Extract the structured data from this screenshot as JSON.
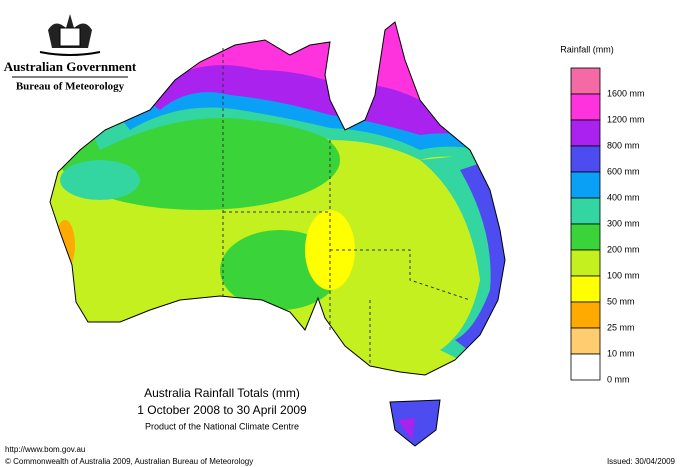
{
  "header": {
    "government": "Australian Government",
    "agency": "Bureau of Meteorology"
  },
  "legend": {
    "title": "Rainfall (mm)",
    "levels": [
      {
        "color": "#f46aa4",
        "label": "1600 mm"
      },
      {
        "color": "#ff33dd",
        "label": "1200 mm"
      },
      {
        "color": "#aa22ee",
        "label": "800 mm"
      },
      {
        "color": "#4c4cf0",
        "label": "600 mm"
      },
      {
        "color": "#0aa0f5",
        "label": "400 mm"
      },
      {
        "color": "#33d6a0",
        "label": "300 mm"
      },
      {
        "color": "#3ad43a",
        "label": "200 mm"
      },
      {
        "color": "#c4f020",
        "label": "100 mm"
      },
      {
        "color": "#ffff00",
        "label": "50 mm"
      },
      {
        "color": "#ffaa00",
        "label": "25 mm"
      },
      {
        "color": "#ffcc70",
        "label": "10 mm"
      },
      {
        "color": "#ffffff",
        "label": "0 mm"
      }
    ]
  },
  "map_title": {
    "title": "Australia Rainfall Totals (mm)",
    "period": "1 October 2008 to 30 April 2009",
    "credit": "Product of the National Climate Centre"
  },
  "footer": {
    "url": "http://www.bom.gov.au",
    "copyright": "© Commonwealth of Australia 2009, Australian Bureau of Meteorology",
    "issued": "Issued: 30/04/2009"
  }
}
